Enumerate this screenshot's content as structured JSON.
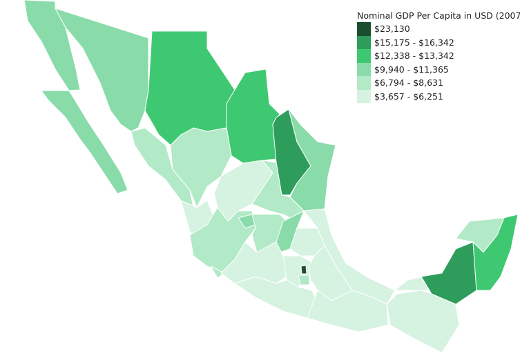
{
  "legend": {
    "title": "Nominal GDP Per Capita in USD (2007)",
    "items": [
      {
        "label": "$23,130",
        "color": "#1b4d2f"
      },
      {
        "label": "$15,175 - $16,342",
        "color": "#2e9d5c"
      },
      {
        "label": "$12,338 - $13,342",
        "color": "#3fc872"
      },
      {
        "label": "$9,940 - $11,365",
        "color": "#89dca9"
      },
      {
        "label": "$6,794 - $8,631",
        "color": "#b2e9c6"
      },
      {
        "label": "$3,657 - $6,251",
        "color": "#d6f2e1"
      }
    ]
  }
}
